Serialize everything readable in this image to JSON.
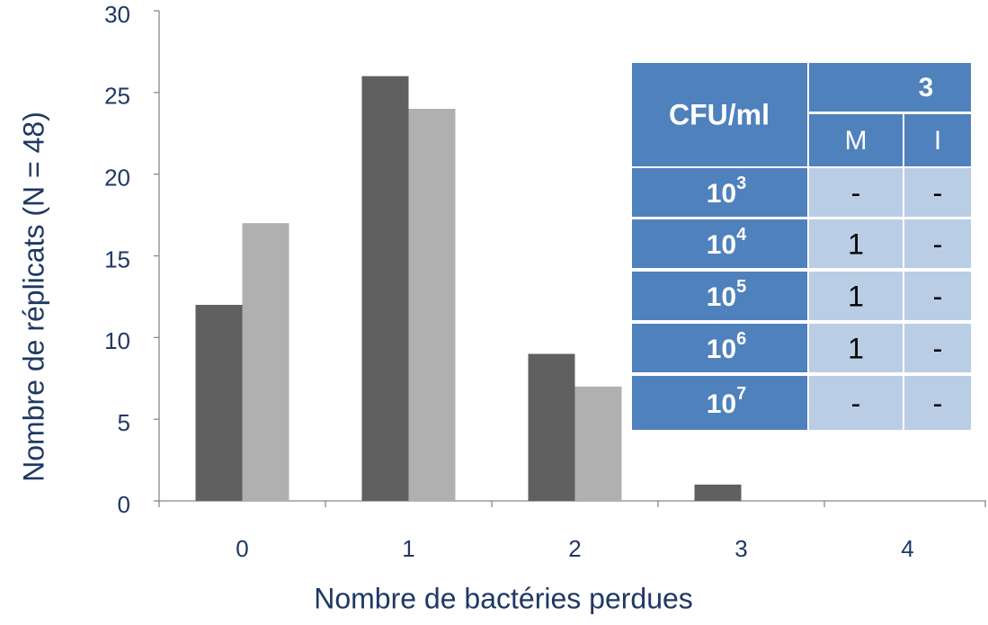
{
  "chart_data": {
    "type": "bar",
    "x_label": "Nombre de bactéries perdues",
    "y_label": "Nombre de réplicats  (N = 48)",
    "categories": [
      "0",
      "1",
      "2",
      "3",
      "4"
    ],
    "series": [
      {
        "color": "#606060",
        "values": [
          12,
          26,
          9,
          1,
          0
        ]
      },
      {
        "color": "#b0b0b0",
        "values": [
          17,
          24,
          7,
          0,
          0
        ]
      }
    ],
    "ylim": [
      0,
      30
    ],
    "yticks": [
      0,
      5,
      10,
      15,
      20,
      25,
      30
    ],
    "grid": false
  },
  "table": {
    "header": {
      "label": "CFU/ml",
      "group": "3",
      "sub": [
        "M",
        "I"
      ]
    },
    "rows": [
      [
        "10",
        "3",
        "-",
        "-"
      ],
      [
        "10",
        "4",
        "1",
        "-"
      ],
      [
        "10",
        "5",
        "1",
        "-"
      ],
      [
        "10",
        "6",
        "1",
        "-"
      ],
      [
        "10",
        "7",
        "-",
        "-"
      ]
    ]
  }
}
